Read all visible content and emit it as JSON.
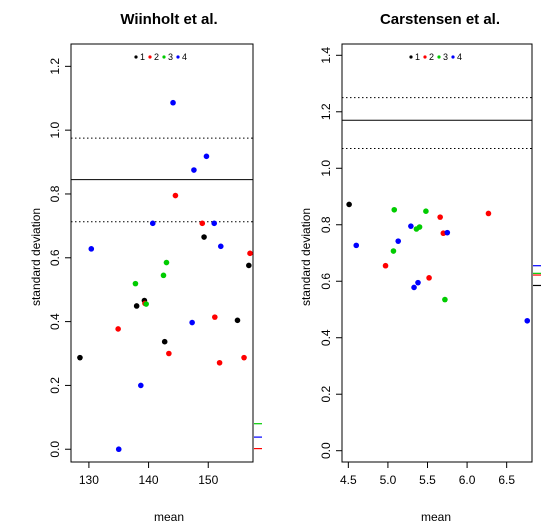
{
  "chart_data": [
    {
      "type": "scatter",
      "title": "Wiinholt et al.",
      "xlabel": "mean",
      "ylabel": "standard deviation",
      "xlim": [
        127,
        157.5
      ],
      "ylim": [
        -0.04,
        1.27
      ],
      "xticks": [
        130,
        140,
        150
      ],
      "yticks": [
        0.0,
        0.2,
        0.4,
        0.6,
        0.8,
        1.0,
        1.2
      ],
      "ytick_labels": [
        "0.0",
        "0.2",
        "0.4",
        "0.6",
        "0.8",
        "1.0",
        "1.2"
      ],
      "legend": {
        "placement": "top-center",
        "entries": [
          {
            "label": "1",
            "color": "#000000"
          },
          {
            "label": "2",
            "color": "#ff0000"
          },
          {
            "label": "3",
            "color": "#00cc00"
          },
          {
            "label": "4",
            "color": "#0000ff"
          }
        ]
      },
      "hlines": [
        {
          "y": 0.845,
          "style": "solid"
        },
        {
          "y": 0.975,
          "style": "dotted"
        },
        {
          "y": 0.713,
          "style": "dotted"
        }
      ],
      "side_ticks": [
        {
          "y": 0.08,
          "color": "#00cc00"
        },
        {
          "y": 0.038,
          "color": "#0000ff"
        },
        {
          "y": 0.002,
          "color": "#ff0000"
        }
      ],
      "series": [
        {
          "name": "1",
          "color": "#000000",
          "points": [
            [
              128.5,
              0.287
            ],
            [
              138,
              0.449
            ],
            [
              139.3,
              0.466
            ],
            [
              142.7,
              0.337
            ],
            [
              149.3,
              0.665
            ],
            [
              154.9,
              0.404
            ],
            [
              156.8,
              0.576
            ]
          ]
        },
        {
          "name": "2",
          "color": "#ff0000",
          "points": [
            [
              134.9,
              0.377
            ],
            [
              139.4,
              0.457
            ],
            [
              143.4,
              0.3
            ],
            [
              144.5,
              0.795
            ],
            [
              149,
              0.708
            ],
            [
              151.1,
              0.414
            ],
            [
              151.9,
              0.271
            ],
            [
              156,
              0.287
            ],
            [
              157,
              0.614
            ]
          ]
        },
        {
          "name": "3",
          "color": "#00cc00",
          "points": [
            [
              137.8,
              0.519
            ],
            [
              139.6,
              0.455
            ],
            [
              142.5,
              0.545
            ],
            [
              143,
              0.585
            ]
          ]
        },
        {
          "name": "4",
          "color": "#0000ff",
          "points": [
            [
              130.4,
              0.628
            ],
            [
              135,
              0
            ],
            [
              138.7,
              0.2
            ],
            [
              140.7,
              0.708
            ],
            [
              144.1,
              1.086
            ],
            [
              147.3,
              0.397
            ],
            [
              147.6,
              0.875
            ],
            [
              149.7,
              0.918
            ],
            [
              151,
              0.708
            ],
            [
              152.1,
              0.636
            ]
          ]
        }
      ]
    },
    {
      "type": "scatter",
      "title": "Carstensen et al.",
      "xlabel": "mean",
      "ylabel": "standard deviation",
      "xlim": [
        4.42,
        6.82
      ],
      "ylim": [
        -0.04,
        1.44
      ],
      "xticks": [
        4.5,
        5.0,
        5.5,
        6.0,
        6.5
      ],
      "xtick_labels": [
        "4.5",
        "5.0",
        "5.5",
        "6.0",
        "6.5"
      ],
      "yticks": [
        0.0,
        0.2,
        0.4,
        0.6,
        0.8,
        1.0,
        1.2,
        1.4
      ],
      "ytick_labels": [
        "0.0",
        "0.2",
        "0.4",
        "0.6",
        "0.8",
        "1.0",
        "1.2",
        "1.4"
      ],
      "legend": {
        "placement": "top-center",
        "entries": [
          {
            "label": "1",
            "color": "#000000"
          },
          {
            "label": "2",
            "color": "#ff0000"
          },
          {
            "label": "3",
            "color": "#00cc00"
          },
          {
            "label": "4",
            "color": "#0000ff"
          }
        ]
      },
      "hlines": [
        {
          "y": 1.17,
          "style": "solid"
        },
        {
          "y": 1.25,
          "style": "dotted"
        },
        {
          "y": 1.07,
          "style": "dotted"
        }
      ],
      "side_ticks": [
        {
          "y": 0.655,
          "color": "#0000ff"
        },
        {
          "y": 0.628,
          "color": "#00cc00"
        },
        {
          "y": 0.622,
          "color": "#ff0000"
        },
        {
          "y": 0.585,
          "color": "#000000"
        }
      ],
      "series": [
        {
          "name": "1",
          "color": "#000000",
          "points": [
            [
              4.51,
              0.872
            ]
          ]
        },
        {
          "name": "2",
          "color": "#ff0000",
          "points": [
            [
              4.97,
              0.655
            ],
            [
              5.52,
              0.612
            ],
            [
              5.66,
              0.827
            ],
            [
              5.7,
              0.77
            ],
            [
              6.27,
              0.84
            ]
          ]
        },
        {
          "name": "3",
          "color": "#00cc00",
          "points": [
            [
              5.07,
              0.707
            ],
            [
              5.08,
              0.853
            ],
            [
              5.36,
              0.785
            ],
            [
              5.4,
              0.792
            ],
            [
              5.48,
              0.848
            ],
            [
              5.72,
              0.535
            ]
          ]
        },
        {
          "name": "4",
          "color": "#0000ff",
          "points": [
            [
              4.6,
              0.727
            ],
            [
              5.13,
              0.742
            ],
            [
              5.29,
              0.795
            ],
            [
              5.33,
              0.578
            ],
            [
              5.38,
              0.595
            ],
            [
              5.75,
              0.772
            ],
            [
              6.76,
              0.46
            ]
          ]
        }
      ]
    }
  ]
}
